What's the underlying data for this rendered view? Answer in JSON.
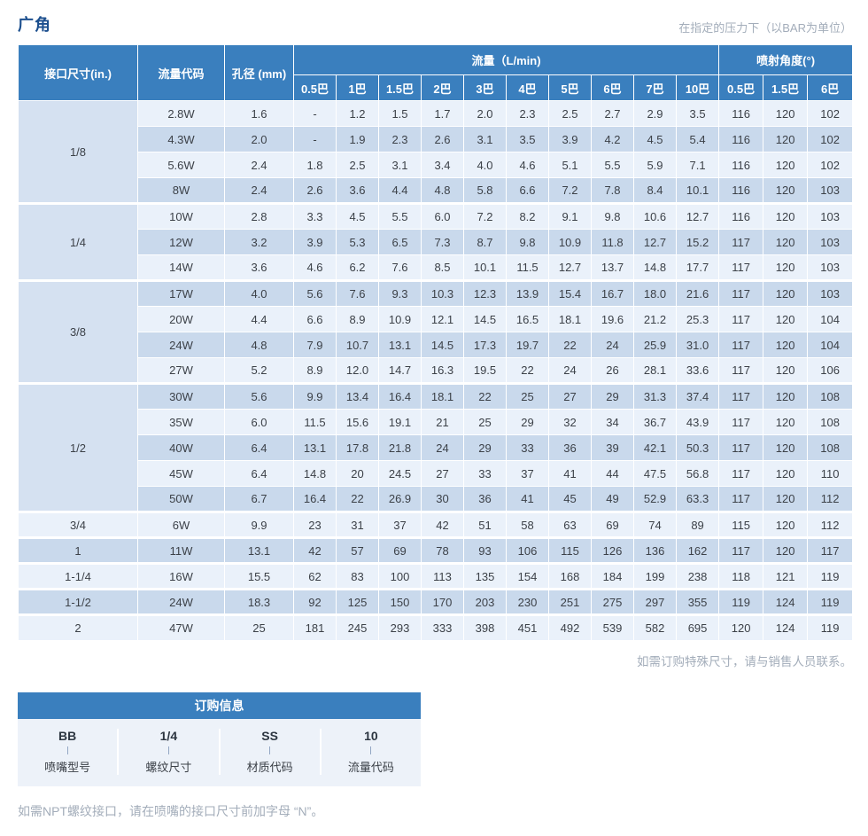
{
  "page": {
    "title": "广角",
    "pressure_note": "在指定的压力下（以BAR为单位）"
  },
  "table": {
    "col_headers": {
      "size": "接口尺寸(in.)",
      "code": "流量代码",
      "orifice": "孔径 (mm)",
      "flow_group": "流量（L/min)",
      "angle_group": "喷射角度(°)",
      "flow_cols": [
        "0.5巴",
        "1巴",
        "1.5巴",
        "2巴",
        "3巴",
        "4巴",
        "5巴",
        "6巴",
        "7巴",
        "10巴"
      ],
      "angle_cols": [
        "0.5巴",
        "1.5巴",
        "6巴"
      ]
    },
    "groups": [
      {
        "size": "1/8",
        "rows": [
          {
            "code": "2.8W",
            "orifice": "1.6",
            "flows": [
              "-",
              "1.2",
              "1.5",
              "1.7",
              "2.0",
              "2.3",
              "2.5",
              "2.7",
              "2.9",
              "3.5"
            ],
            "angles": [
              "116",
              "120",
              "102"
            ]
          },
          {
            "code": "4.3W",
            "orifice": "2.0",
            "flows": [
              "-",
              "1.9",
              "2.3",
              "2.6",
              "3.1",
              "3.5",
              "3.9",
              "4.2",
              "4.5",
              "5.4"
            ],
            "angles": [
              "116",
              "120",
              "102"
            ]
          },
          {
            "code": "5.6W",
            "orifice": "2.4",
            "flows": [
              "1.8",
              "2.5",
              "3.1",
              "3.4",
              "4.0",
              "4.6",
              "5.1",
              "5.5",
              "5.9",
              "7.1"
            ],
            "angles": [
              "116",
              "120",
              "102"
            ]
          },
          {
            "code": "8W",
            "orifice": "2.4",
            "flows": [
              "2.6",
              "3.6",
              "4.4",
              "4.8",
              "5.8",
              "6.6",
              "7.2",
              "7.8",
              "8.4",
              "10.1"
            ],
            "angles": [
              "116",
              "120",
              "103"
            ]
          }
        ]
      },
      {
        "size": "1/4",
        "rows": [
          {
            "code": "10W",
            "orifice": "2.8",
            "flows": [
              "3.3",
              "4.5",
              "5.5",
              "6.0",
              "7.2",
              "8.2",
              "9.1",
              "9.8",
              "10.6",
              "12.7"
            ],
            "angles": [
              "116",
              "120",
              "103"
            ]
          },
          {
            "code": "12W",
            "orifice": "3.2",
            "flows": [
              "3.9",
              "5.3",
              "6.5",
              "7.3",
              "8.7",
              "9.8",
              "10.9",
              "11.8",
              "12.7",
              "15.2"
            ],
            "angles": [
              "117",
              "120",
              "103"
            ]
          },
          {
            "code": "14W",
            "orifice": "3.6",
            "flows": [
              "4.6",
              "6.2",
              "7.6",
              "8.5",
              "10.1",
              "11.5",
              "12.7",
              "13.7",
              "14.8",
              "17.7"
            ],
            "angles": [
              "117",
              "120",
              "103"
            ]
          }
        ]
      },
      {
        "size": "3/8",
        "rows": [
          {
            "code": "17W",
            "orifice": "4.0",
            "flows": [
              "5.6",
              "7.6",
              "9.3",
              "10.3",
              "12.3",
              "13.9",
              "15.4",
              "16.7",
              "18.0",
              "21.6"
            ],
            "angles": [
              "117",
              "120",
              "103"
            ]
          },
          {
            "code": "20W",
            "orifice": "4.4",
            "flows": [
              "6.6",
              "8.9",
              "10.9",
              "12.1",
              "14.5",
              "16.5",
              "18.1",
              "19.6",
              "21.2",
              "25.3"
            ],
            "angles": [
              "117",
              "120",
              "104"
            ]
          },
          {
            "code": "24W",
            "orifice": "4.8",
            "flows": [
              "7.9",
              "10.7",
              "13.1",
              "14.5",
              "17.3",
              "19.7",
              "22",
              "24",
              "25.9",
              "31.0"
            ],
            "angles": [
              "117",
              "120",
              "104"
            ]
          },
          {
            "code": "27W",
            "orifice": "5.2",
            "flows": [
              "8.9",
              "12.0",
              "14.7",
              "16.3",
              "19.5",
              "22",
              "24",
              "26",
              "28.1",
              "33.6"
            ],
            "angles": [
              "117",
              "120",
              "106"
            ]
          }
        ]
      },
      {
        "size": "1/2",
        "rows": [
          {
            "code": "30W",
            "orifice": "5.6",
            "flows": [
              "9.9",
              "13.4",
              "16.4",
              "18.1",
              "22",
              "25",
              "27",
              "29",
              "31.3",
              "37.4"
            ],
            "angles": [
              "117",
              "120",
              "108"
            ]
          },
          {
            "code": "35W",
            "orifice": "6.0",
            "flows": [
              "11.5",
              "15.6",
              "19.1",
              "21",
              "25",
              "29",
              "32",
              "34",
              "36.7",
              "43.9"
            ],
            "angles": [
              "117",
              "120",
              "108"
            ]
          },
          {
            "code": "40W",
            "orifice": "6.4",
            "flows": [
              "13.1",
              "17.8",
              "21.8",
              "24",
              "29",
              "33",
              "36",
              "39",
              "42.1",
              "50.3"
            ],
            "angles": [
              "117",
              "120",
              "108"
            ]
          },
          {
            "code": "45W",
            "orifice": "6.4",
            "flows": [
              "14.8",
              "20",
              "24.5",
              "27",
              "33",
              "37",
              "41",
              "44",
              "47.5",
              "56.8"
            ],
            "angles": [
              "117",
              "120",
              "110"
            ]
          },
          {
            "code": "50W",
            "orifice": "6.7",
            "flows": [
              "16.4",
              "22",
              "26.9",
              "30",
              "36",
              "41",
              "45",
              "49",
              "52.9",
              "63.3"
            ],
            "angles": [
              "117",
              "120",
              "112"
            ]
          }
        ]
      },
      {
        "size": "3/4",
        "rows": [
          {
            "code": "6W",
            "orifice": "9.9",
            "flows": [
              "23",
              "31",
              "37",
              "42",
              "51",
              "58",
              "63",
              "69",
              "74",
              "89"
            ],
            "angles": [
              "115",
              "120",
              "112"
            ]
          }
        ]
      },
      {
        "size": "1",
        "rows": [
          {
            "code": "11W",
            "orifice": "13.1",
            "flows": [
              "42",
              "57",
              "69",
              "78",
              "93",
              "106",
              "115",
              "126",
              "136",
              "162"
            ],
            "angles": [
              "117",
              "120",
              "117"
            ]
          }
        ]
      },
      {
        "size": "1-1/4",
        "rows": [
          {
            "code": "16W",
            "orifice": "15.5",
            "flows": [
              "62",
              "83",
              "100",
              "113",
              "135",
              "154",
              "168",
              "184",
              "199",
              "238"
            ],
            "angles": [
              "118",
              "121",
              "119"
            ]
          }
        ]
      },
      {
        "size": "1-1/2",
        "rows": [
          {
            "code": "24W",
            "orifice": "18.3",
            "flows": [
              "92",
              "125",
              "150",
              "170",
              "203",
              "230",
              "251",
              "275",
              "297",
              "355"
            ],
            "angles": [
              "119",
              "124",
              "119"
            ]
          }
        ]
      },
      {
        "size": "2",
        "rows": [
          {
            "code": "47W",
            "orifice": "25",
            "flows": [
              "181",
              "245",
              "293",
              "333",
              "398",
              "451",
              "492",
              "539",
              "582",
              "695"
            ],
            "angles": [
              "120",
              "124",
              "119"
            ]
          }
        ]
      }
    ]
  },
  "notes": {
    "special_size": "如需订购特殊尺寸，请与销售人员联系。",
    "npt": "如需NPT螺纹接口，请在喷嘴的接口尺寸前加字母 “N”。"
  },
  "ordering": {
    "title": "订购信息",
    "items": [
      {
        "code": "BB",
        "label": "喷嘴型号"
      },
      {
        "code": "1/4",
        "label": "螺纹尺寸"
      },
      {
        "code": "SS",
        "label": "材质代码"
      },
      {
        "code": "10",
        "label": "流量代码"
      }
    ]
  },
  "colors": {
    "header_blue": "#3a7fbe",
    "row_light": "#eaf1fa",
    "row_dark": "#c9d9ec",
    "group_cell": "#d5e1f1",
    "title_navy": "#1c4f8e",
    "note_gray": "#a3adba"
  }
}
